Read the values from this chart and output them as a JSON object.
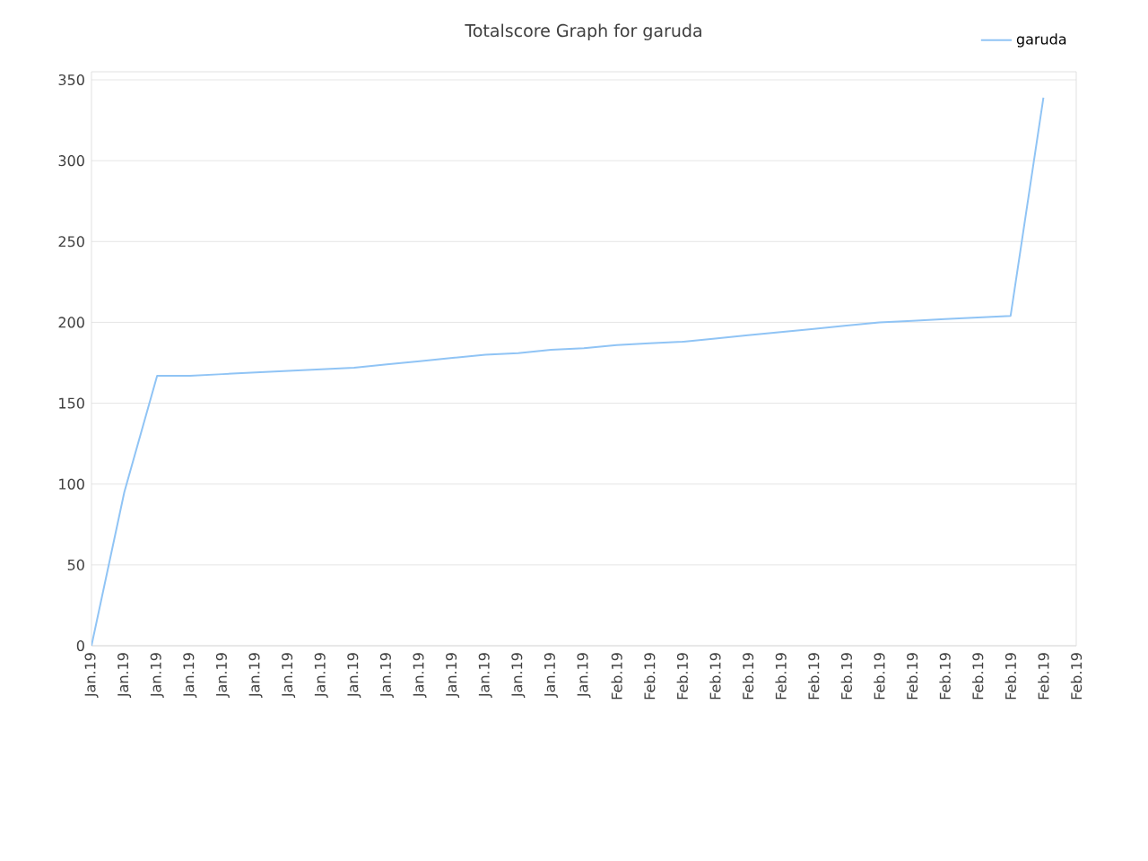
{
  "chart_data": {
    "type": "line",
    "title": "Totalscore Graph for garuda",
    "categories": [
      "Jan.19",
      "Jan.19",
      "Jan.19",
      "Jan.19",
      "Jan.19",
      "Jan.19",
      "Jan.19",
      "Jan.19",
      "Jan.19",
      "Jan.19",
      "Jan.19",
      "Jan.19",
      "Jan.19",
      "Jan.19",
      "Jan.19",
      "Jan.19",
      "Feb.19",
      "Feb.19",
      "Feb.19",
      "Feb.19",
      "Feb.19",
      "Feb.19",
      "Feb.19",
      "Feb.19",
      "Feb.19",
      "Feb.19",
      "Feb.19",
      "Feb.19",
      "Feb.19",
      "Feb.19",
      "Feb.19"
    ],
    "series": [
      {
        "name": "garuda",
        "color": "#90c4f5",
        "values": [
          0,
          95,
          167,
          167,
          168,
          169,
          170,
          171,
          172,
          174,
          176,
          178,
          180,
          181,
          183,
          184,
          186,
          187,
          188,
          190,
          192,
          194,
          196,
          198,
          200,
          201,
          202,
          203,
          204,
          339,
          null
        ]
      }
    ],
    "ylim": [
      0,
      355
    ],
    "yticks": [
      0,
      50,
      100,
      150,
      200,
      250,
      300,
      350
    ],
    "grid": "y",
    "legend": "top right",
    "marker": "none",
    "line_style": "solid"
  }
}
